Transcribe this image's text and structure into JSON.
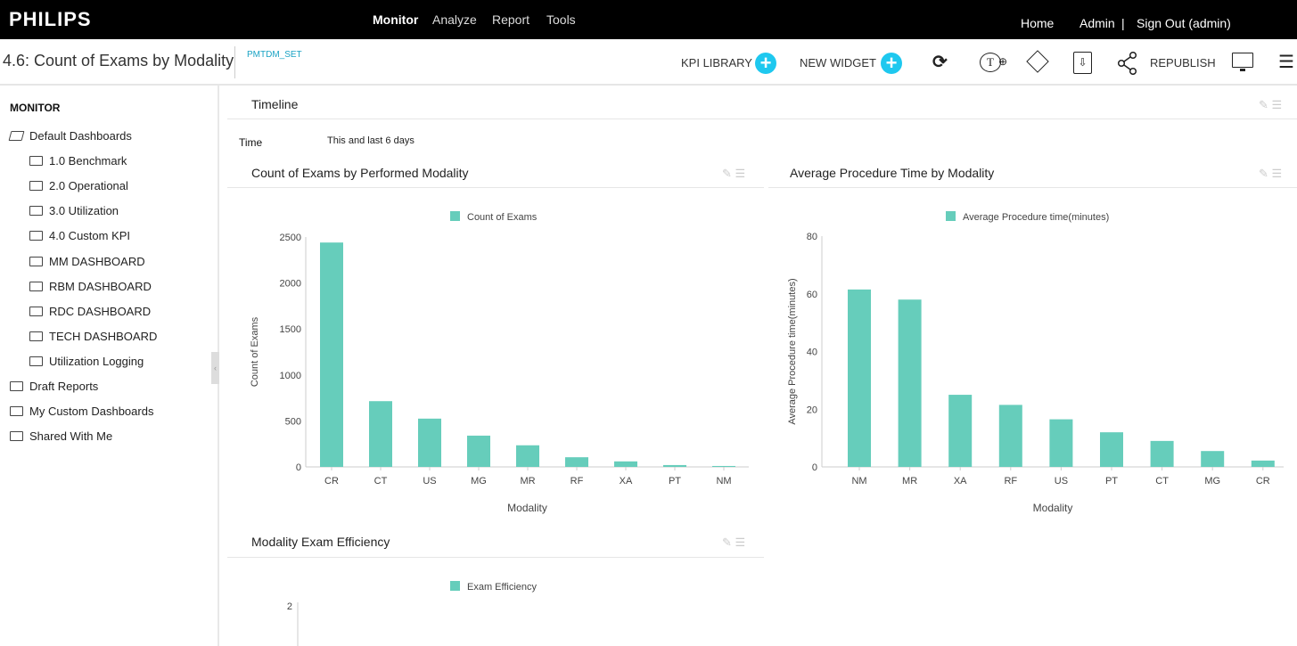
{
  "topbar": {
    "logo": "PHILIPS",
    "nav": [
      "Monitor",
      "Analyze",
      "Report",
      "Tools"
    ],
    "right": {
      "home": "Home",
      "admin": "Admin",
      "divider": "|",
      "signout": "Sign Out (admin)"
    }
  },
  "header": {
    "title": "4.6: Count of Exams by Modality",
    "subtitle": "PMTDM_SET",
    "kpi_library": "KPI LIBRARY",
    "new_widget": "NEW WIDGET",
    "republish": "REPUBLISH",
    "plus": "+",
    "icons": [
      "refresh-icon",
      "text-add-icon",
      "paint-bucket-icon",
      "download-icon",
      "share-icon",
      "monitor-icon",
      "menu-icon"
    ],
    "accent": "#1ec8ef"
  },
  "sidebar": {
    "heading": "MONITOR",
    "items": [
      {
        "label": "Default Dashboards",
        "level": 0,
        "open": true
      },
      {
        "label": "1.0 Benchmark",
        "level": 1
      },
      {
        "label": "2.0 Operational",
        "level": 1
      },
      {
        "label": "3.0 Utilization",
        "level": 1
      },
      {
        "label": "4.0 Custom KPI",
        "level": 1
      },
      {
        "label": "MM DASHBOARD",
        "level": 1
      },
      {
        "label": "RBM DASHBOARD",
        "level": 1
      },
      {
        "label": "RDC DASHBOARD",
        "level": 1
      },
      {
        "label": "TECH DASHBOARD",
        "level": 1
      },
      {
        "label": "Utilization Logging",
        "level": 1
      },
      {
        "label": "Draft Reports",
        "level": 0
      },
      {
        "label": "My Custom Dashboards",
        "level": 0
      },
      {
        "label": "Shared With Me",
        "level": 0
      }
    ]
  },
  "timeline": {
    "title": "Timeline",
    "label": "Time",
    "value": "This and last 6 days"
  },
  "panels": {
    "p1": "Count of Exams by Performed Modality",
    "p2": "Average Procedure Time by Modality",
    "p3": "Modality Exam Efficiency"
  },
  "chart_data": [
    {
      "type": "bar",
      "title": "Count of Exams by Performed Modality",
      "legend": "Count of Exams",
      "xlabel": "Modality",
      "ylabel": "Count of Exams",
      "color": "#66cdbb",
      "categories": [
        "CR",
        "CT",
        "US",
        "MG",
        "MR",
        "RF",
        "XA",
        "PT",
        "NM"
      ],
      "values": [
        2440,
        715,
        525,
        340,
        235,
        105,
        60,
        20,
        10
      ],
      "ylim": [
        0,
        2500
      ],
      "yticks": [
        0,
        500,
        1000,
        1500,
        2000,
        2500
      ],
      "legend_position": "top"
    },
    {
      "type": "bar",
      "title": "Average Procedure Time by Modality",
      "legend": "Average Procedure time(minutes)",
      "xlabel": "Modality",
      "ylabel": "Average Procedure time(minutes)",
      "color": "#66cdbb",
      "categories": [
        "NM",
        "MR",
        "XA",
        "RF",
        "US",
        "PT",
        "CT",
        "MG",
        "CR"
      ],
      "values": [
        61.5,
        58,
        25,
        21.5,
        16.5,
        12,
        9,
        5.5,
        2.2
      ],
      "ylim": [
        0,
        80
      ],
      "yticks": [
        0,
        20,
        40,
        60,
        80
      ],
      "legend_position": "top"
    },
    {
      "type": "bar",
      "title": "Modality Exam Efficiency",
      "legend": "Exam Efficiency",
      "color": "#66cdbb",
      "yticks": [
        2
      ],
      "legend_position": "top"
    }
  ]
}
